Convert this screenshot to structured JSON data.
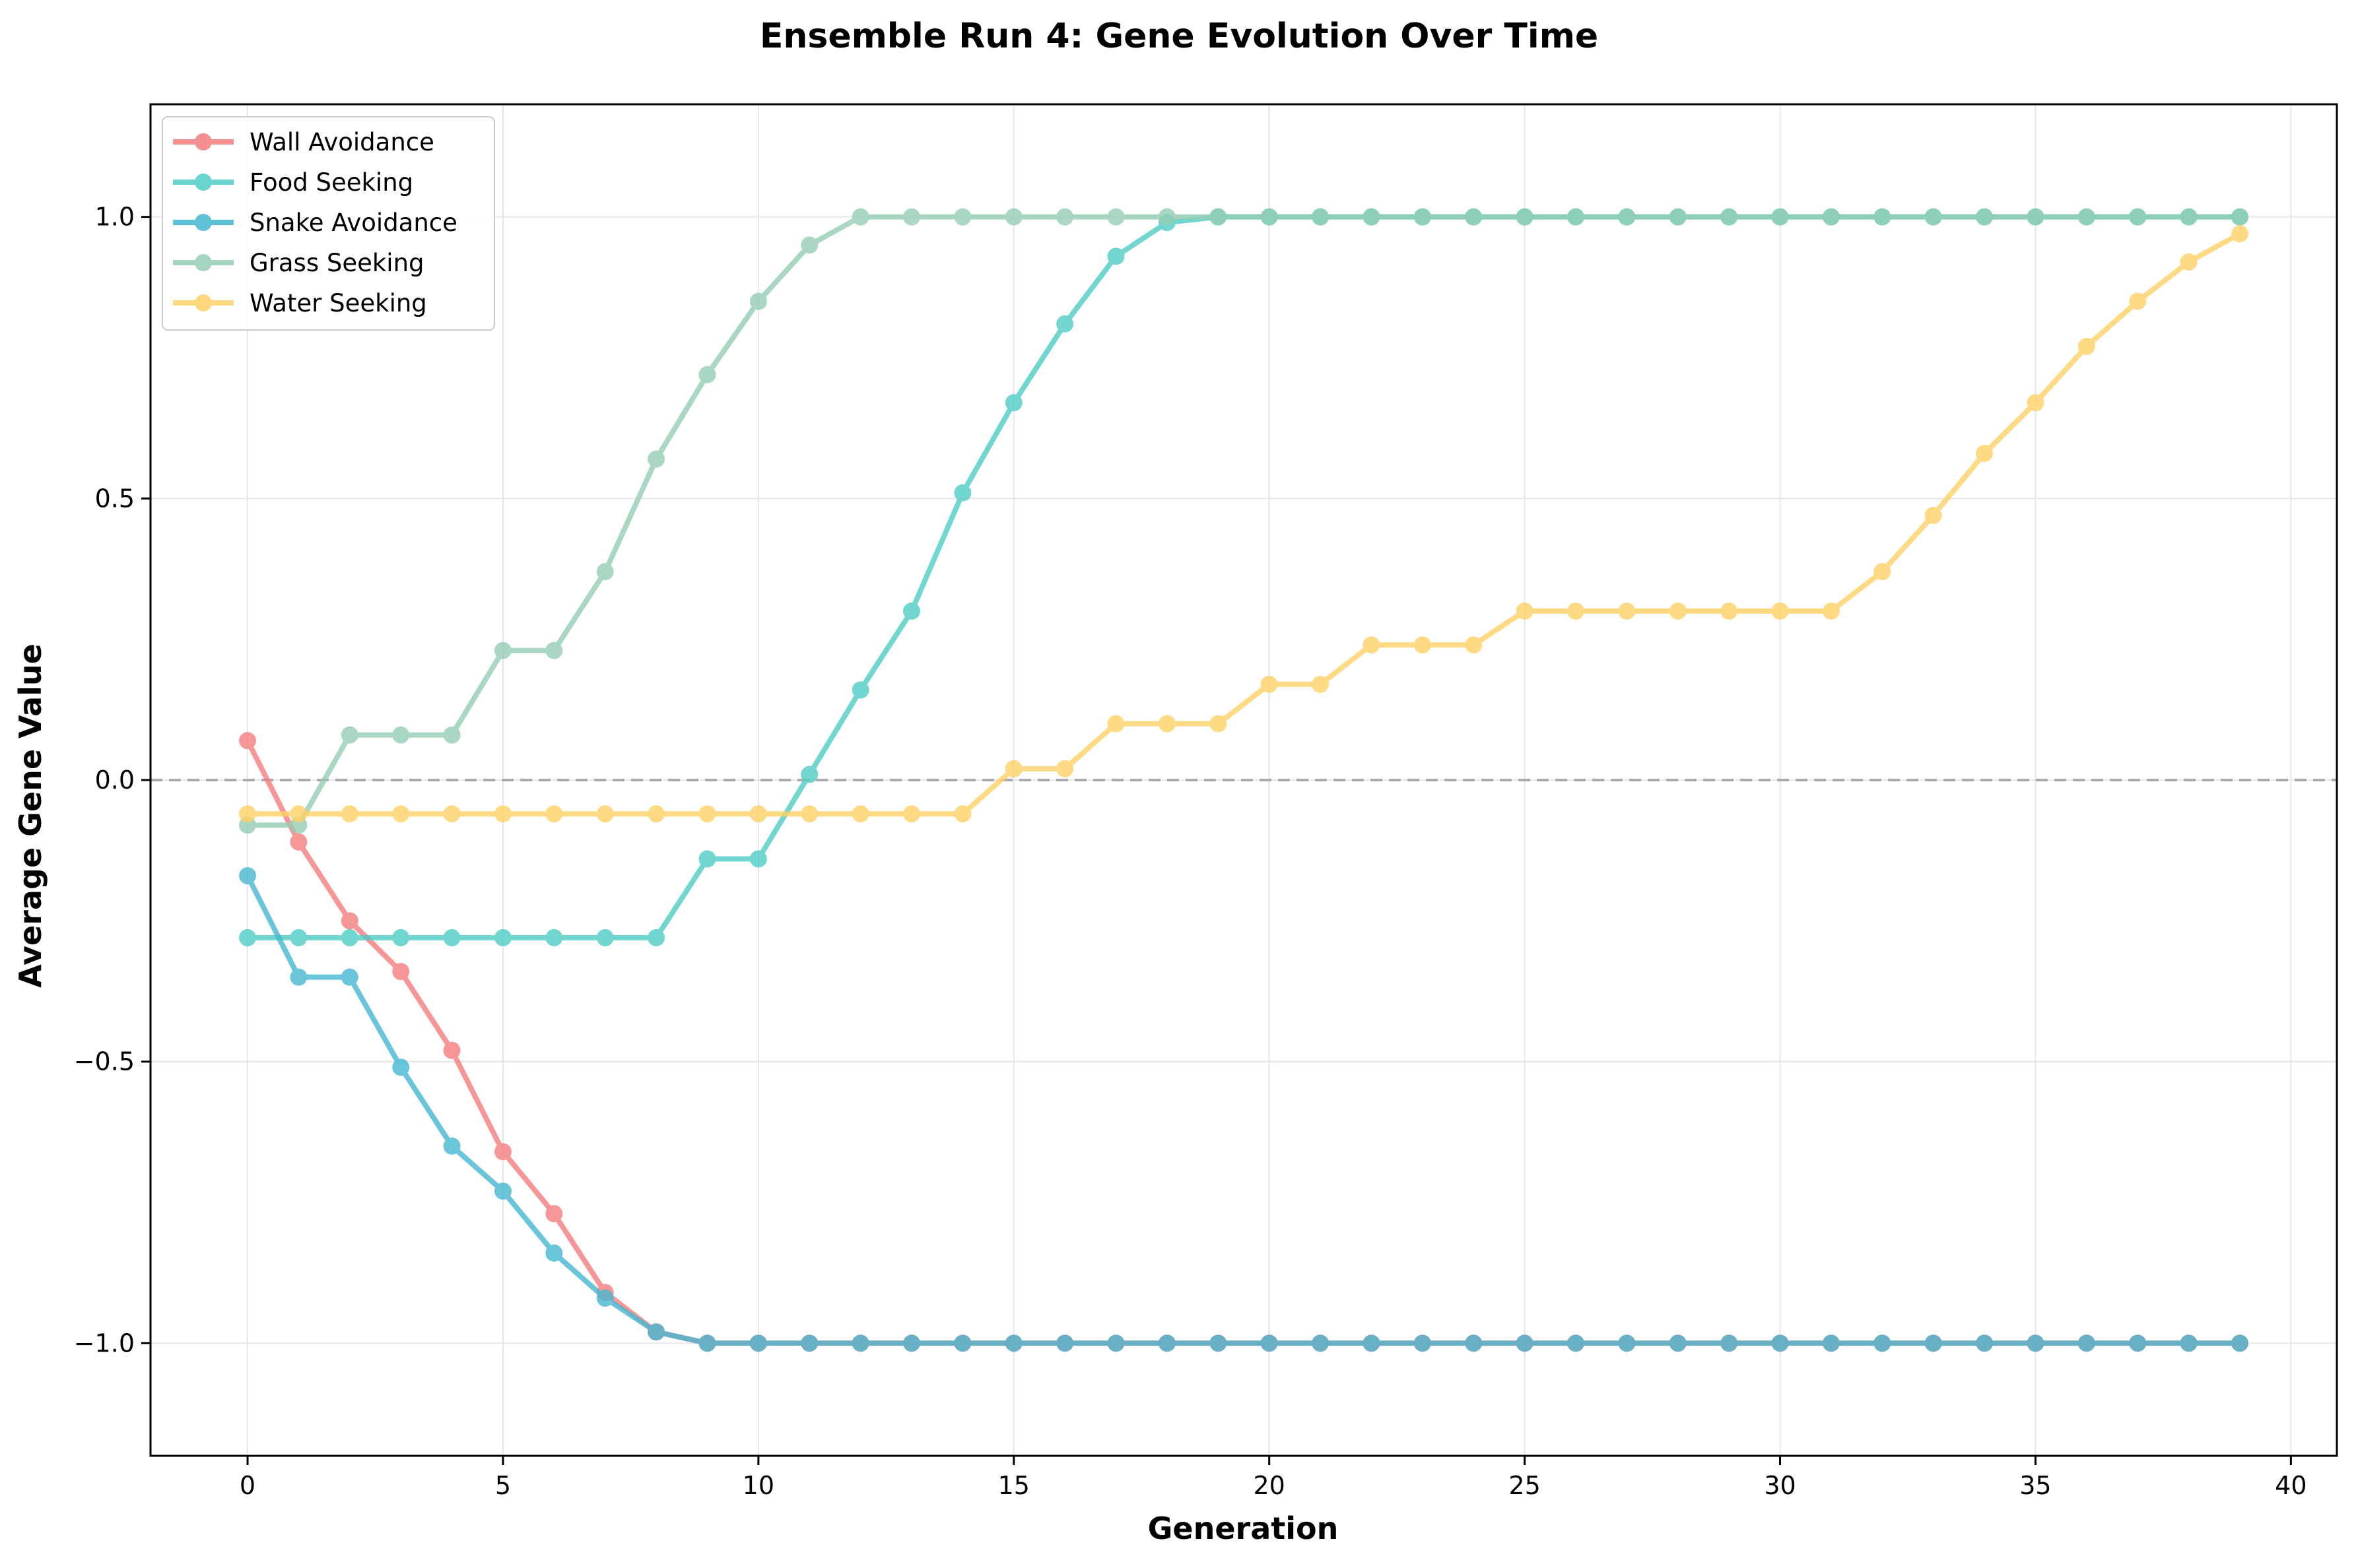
{
  "chart_data": {
    "type": "line",
    "title": "Ensemble Run 4: Gene Evolution Over Time",
    "xlabel": "Generation",
    "ylabel": "Average Gene Value",
    "xlim": [
      -1.9,
      40.9
    ],
    "ylim": [
      -1.2,
      1.2
    ],
    "xticks": [
      0,
      5,
      10,
      15,
      20,
      25,
      30,
      35,
      40
    ],
    "xtick_labels": [
      "0",
      "5",
      "10",
      "15",
      "20",
      "25",
      "30",
      "35",
      "40"
    ],
    "yticks": [
      -1.0,
      -0.5,
      0.0,
      0.5,
      1.0
    ],
    "ytick_labels": [
      "−1.0",
      "−0.5",
      "0.0",
      "0.5",
      "1.0"
    ],
    "grid": true,
    "reference_line": {
      "y": 0.0,
      "style": "dashed",
      "color": "#aaaaaa"
    },
    "legend_position": "upper-left",
    "x": [
      0,
      1,
      2,
      3,
      4,
      5,
      6,
      7,
      8,
      9,
      10,
      11,
      12,
      13,
      14,
      15,
      16,
      17,
      18,
      19,
      20,
      21,
      22,
      23,
      24,
      25,
      26,
      27,
      28,
      29,
      30,
      31,
      32,
      33,
      34,
      35,
      36,
      37,
      38,
      39
    ],
    "series": [
      {
        "name": "Wall Avoidance",
        "color": "#f47c7c",
        "values": [
          0.07,
          -0.11,
          -0.25,
          -0.34,
          -0.48,
          -0.66,
          -0.77,
          -0.91,
          -0.98,
          -1.0,
          -1.0,
          -1.0,
          -1.0,
          -1.0,
          -1.0,
          -1.0,
          -1.0,
          -1.0,
          -1.0,
          -1.0,
          -1.0,
          -1.0,
          -1.0,
          -1.0,
          -1.0,
          -1.0,
          -1.0,
          -1.0,
          -1.0,
          -1.0,
          -1.0,
          -1.0,
          -1.0,
          -1.0,
          -1.0,
          -1.0,
          -1.0,
          -1.0,
          -1.0,
          -1.0
        ]
      },
      {
        "name": "Food Seeking",
        "color": "#4ecdc4",
        "values": [
          -0.28,
          -0.28,
          -0.28,
          -0.28,
          -0.28,
          -0.28,
          -0.28,
          -0.28,
          -0.28,
          -0.14,
          -0.14,
          0.01,
          0.16,
          0.3,
          0.51,
          0.67,
          0.81,
          0.93,
          0.99,
          1.0,
          1.0,
          1.0,
          1.0,
          1.0,
          1.0,
          1.0,
          1.0,
          1.0,
          1.0,
          1.0,
          1.0,
          1.0,
          1.0,
          1.0,
          1.0,
          1.0,
          1.0,
          1.0,
          1.0,
          1.0
        ]
      },
      {
        "name": "Snake Avoidance",
        "color": "#45b7d1",
        "values": [
          -0.17,
          -0.35,
          -0.35,
          -0.51,
          -0.65,
          -0.73,
          -0.84,
          -0.92,
          -0.98,
          -1.0,
          -1.0,
          -1.0,
          -1.0,
          -1.0,
          -1.0,
          -1.0,
          -1.0,
          -1.0,
          -1.0,
          -1.0,
          -1.0,
          -1.0,
          -1.0,
          -1.0,
          -1.0,
          -1.0,
          -1.0,
          -1.0,
          -1.0,
          -1.0,
          -1.0,
          -1.0,
          -1.0,
          -1.0,
          -1.0,
          -1.0,
          -1.0,
          -1.0,
          -1.0,
          -1.0
        ]
      },
      {
        "name": "Grass Seeking",
        "color": "#96ceb4",
        "values": [
          -0.08,
          -0.08,
          0.08,
          0.08,
          0.08,
          0.23,
          0.23,
          0.37,
          0.57,
          0.72,
          0.85,
          0.95,
          1.0,
          1.0,
          1.0,
          1.0,
          1.0,
          1.0,
          1.0,
          1.0,
          1.0,
          1.0,
          1.0,
          1.0,
          1.0,
          1.0,
          1.0,
          1.0,
          1.0,
          1.0,
          1.0,
          1.0,
          1.0,
          1.0,
          1.0,
          1.0,
          1.0,
          1.0,
          1.0,
          1.0
        ]
      },
      {
        "name": "Water Seeking",
        "color": "#ffd166",
        "values": [
          -0.06,
          -0.06,
          -0.06,
          -0.06,
          -0.06,
          -0.06,
          -0.06,
          -0.06,
          -0.06,
          -0.06,
          -0.06,
          -0.06,
          -0.06,
          -0.06,
          -0.06,
          0.02,
          0.02,
          0.1,
          0.1,
          0.1,
          0.17,
          0.17,
          0.24,
          0.24,
          0.24,
          0.3,
          0.3,
          0.3,
          0.3,
          0.3,
          0.3,
          0.3,
          0.37,
          0.47,
          0.58,
          0.67,
          0.77,
          0.85,
          0.92,
          0.97
        ]
      }
    ]
  }
}
